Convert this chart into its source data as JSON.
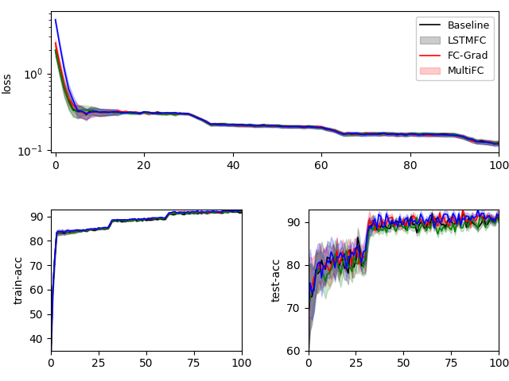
{
  "legend_labels": [
    "Baseline",
    "LSTMFC",
    "FC-Grad",
    "MultiFC"
  ],
  "colors": [
    "black",
    "red",
    "green",
    "blue"
  ],
  "n_epochs": 101,
  "loss_ylabel": "loss",
  "train_ylabel": "train-acc",
  "test_ylabel": "test-acc",
  "figsize": [
    6.4,
    4.8
  ],
  "dpi": 100,
  "loss_xlim": [
    -1,
    100
  ],
  "loss_xticks": [
    0,
    20,
    40,
    60,
    80,
    100
  ],
  "bottom_xticks": [
    0,
    25,
    50,
    75,
    100
  ],
  "train_ylim": [
    35,
    93
  ],
  "test_ylim": [
    60,
    93
  ]
}
